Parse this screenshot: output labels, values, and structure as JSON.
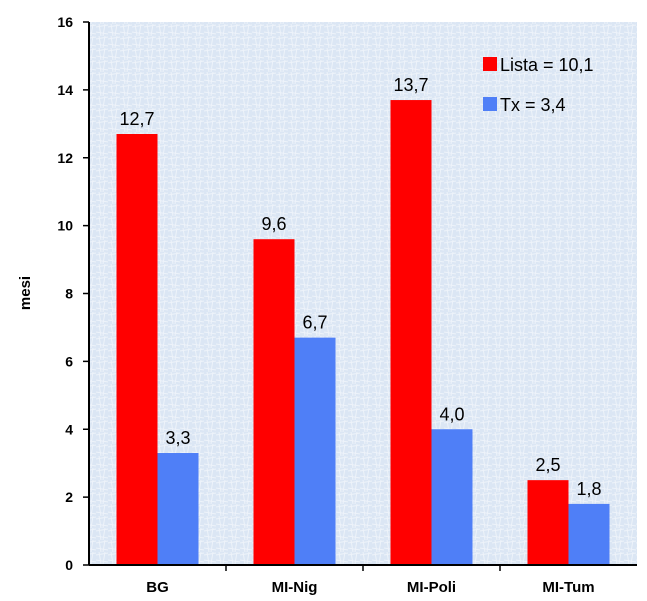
{
  "chart_data": {
    "type": "bar",
    "categories": [
      "BG",
      "MI-Nig",
      "MI-Poli",
      "MI-Tum"
    ],
    "series": [
      {
        "name": "Lista = 10,1",
        "color": "#ff0000",
        "values": [
          12.7,
          9.6,
          13.7,
          2.5
        ],
        "labels": [
          "12,7",
          "9,6",
          "13,7",
          "2,5"
        ]
      },
      {
        "name": "Tx = 3,4",
        "color": "#4f7ff7",
        "values": [
          3.3,
          6.7,
          4.0,
          1.8
        ],
        "labels": [
          "3,3",
          "6,7",
          "4,0",
          "1,8"
        ]
      }
    ],
    "ylabel": "mesi",
    "ylim": [
      0,
      16
    ],
    "yticks": [
      0,
      2,
      4,
      6,
      8,
      10,
      12,
      14,
      16
    ],
    "legend_position": "top-right",
    "plot_background": "#dde8f5"
  }
}
